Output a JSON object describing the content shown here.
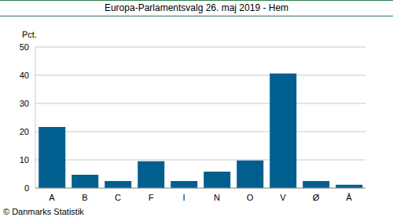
{
  "chart_data": {
    "type": "bar",
    "title": "Europa-Parlamentsvalg 26. maj 2019 - Hem",
    "y_label": "Pct.",
    "annotations": [
      "© Danmarks Statistik"
    ],
    "categories": [
      "A",
      "B",
      "C",
      "F",
      "I",
      "N",
      "O",
      "V",
      "Ø",
      "Å"
    ],
    "values": [
      21.7,
      4.7,
      2.5,
      9.5,
      2.5,
      5.8,
      9.8,
      40.6,
      2.5,
      1.2
    ],
    "color": "#005f8f",
    "ylim": [
      0,
      50
    ],
    "yticks": [
      0,
      10,
      20,
      30,
      40,
      50
    ],
    "grid": true
  }
}
